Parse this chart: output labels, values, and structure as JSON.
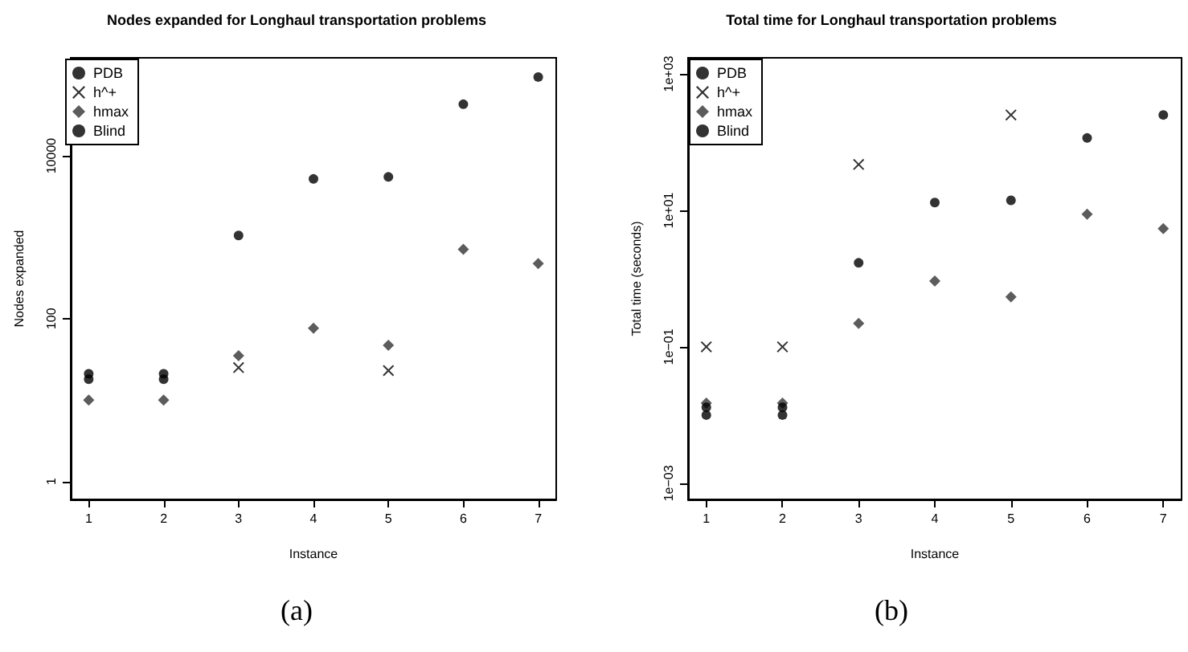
{
  "chart_data": [
    {
      "type": "scatter",
      "title": "Nodes expanded for Longhaul transportation problems",
      "xlabel": "Instance",
      "ylabel": "Nodes expanded",
      "log": "y",
      "grid": false,
      "legend": "top left",
      "x": [
        1,
        2,
        3,
        4,
        5,
        6,
        7
      ],
      "xlim": [
        0.76,
        7.24
      ],
      "xticks": [
        1,
        2,
        3,
        4,
        5,
        6,
        7
      ],
      "ylim": [
        0.6,
        160000
      ],
      "yticks": [
        1,
        100,
        10000
      ],
      "series": [
        {
          "name": "PDB",
          "color": "#000000",
          "marker": "circle",
          "values": [
            18,
            18,
            null,
            null,
            null,
            null,
            null
          ]
        },
        {
          "name": "h^+",
          "color": "#000000",
          "marker": "cross",
          "values": [
            null,
            null,
            25,
            null,
            23,
            null,
            null
          ]
        },
        {
          "name": "hmax",
          "color": "#333333",
          "marker": "diamond",
          "values": [
            10,
            10,
            35,
            76,
            47,
            710,
            475
          ]
        },
        {
          "name": "Blind",
          "color": "#000000",
          "marker": "circle",
          "values": [
            21,
            21,
            1050,
            5200,
            5500,
            43000,
            93000
          ]
        }
      ],
      "annotations": [
        "(a)"
      ]
    },
    {
      "type": "scatter",
      "title": "Total time for Longhaul transportation problems",
      "xlabel": "Instance",
      "ylabel": "Total time (seconds)",
      "log": "y",
      "grid": false,
      "legend": "top left",
      "x": [
        1,
        2,
        3,
        4,
        5,
        6,
        7
      ],
      "xlim": [
        0.76,
        7.24
      ],
      "xticks": [
        1,
        2,
        3,
        4,
        5,
        6,
        7
      ],
      "ylim": [
        0.00058,
        1720
      ],
      "yticks": [
        {
          "value": 0.001,
          "label": "1e−03"
        },
        {
          "value": 0.1,
          "label": "1e−01"
        },
        {
          "value": 10,
          "label": "1e+01"
        },
        {
          "value": 1000,
          "label": "1e+03"
        }
      ],
      "series": [
        {
          "name": "PDB",
          "color": "#000000",
          "marker": "circle",
          "values": [
            0.01,
            0.01,
            null,
            null,
            null,
            null,
            null
          ]
        },
        {
          "name": "h^+",
          "color": "#000000",
          "marker": "cross",
          "values": [
            0.1,
            0.1,
            47,
            null,
            250,
            null,
            null
          ]
        },
        {
          "name": "hmax",
          "color": "#333333",
          "marker": "diamond",
          "values": [
            0.015,
            0.015,
            0.22,
            0.92,
            0.54,
            8.8,
            5.4
          ]
        },
        {
          "name": "Blind",
          "color": "#000000",
          "marker": "circle",
          "values": [
            0.013,
            0.013,
            1.7,
            13,
            14,
            115,
            250
          ]
        }
      ],
      "annotations": [
        "(b)"
      ]
    }
  ]
}
